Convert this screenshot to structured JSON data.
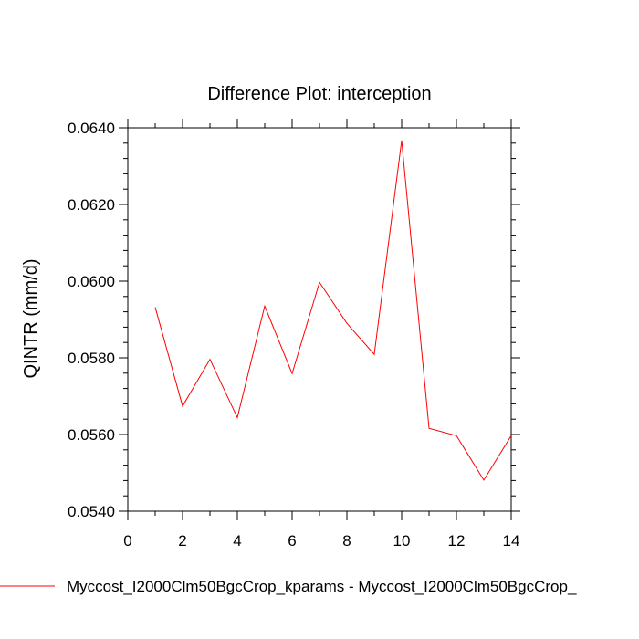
{
  "chart_data": {
    "type": "line",
    "title": "Difference Plot: interception",
    "xlabel": "",
    "ylabel": "QINTR  (mm/d)",
    "xlim": [
      0,
      14
    ],
    "ylim": [
      0.054,
      0.064
    ],
    "x_ticks": [
      0,
      2,
      4,
      6,
      8,
      10,
      12,
      14
    ],
    "x_tick_labels": [
      "0",
      "2",
      "4",
      "6",
      "8",
      "10",
      "12",
      "14"
    ],
    "y_ticks": [
      0.054,
      0.056,
      0.058,
      0.06,
      0.062,
      0.064
    ],
    "y_tick_labels": [
      "0.0540",
      "0.0560",
      "0.0580",
      "0.0600",
      "0.0620",
      "0.0640"
    ],
    "grid": false,
    "series": [
      {
        "name": "Myccost_I2000Clm50BgcCrop_kparams - Myccost_I2000Clm50BgcCrop_",
        "color": "#ff0000",
        "x": [
          1,
          2,
          3,
          4,
          5,
          6,
          7,
          8,
          9,
          10,
          11,
          12,
          13,
          14
        ],
        "values": [
          0.05932,
          0.05674,
          0.05796,
          0.05644,
          0.05935,
          0.05759,
          0.05997,
          0.0589,
          0.05809,
          0.06367,
          0.05616,
          0.05597,
          0.05481,
          0.05597
        ]
      }
    ],
    "legend": {
      "placement": "bottom",
      "label": "Myccost_I2000Clm50BgcCrop_kparams - Myccost_I2000Clm50BgcCrop_"
    }
  }
}
